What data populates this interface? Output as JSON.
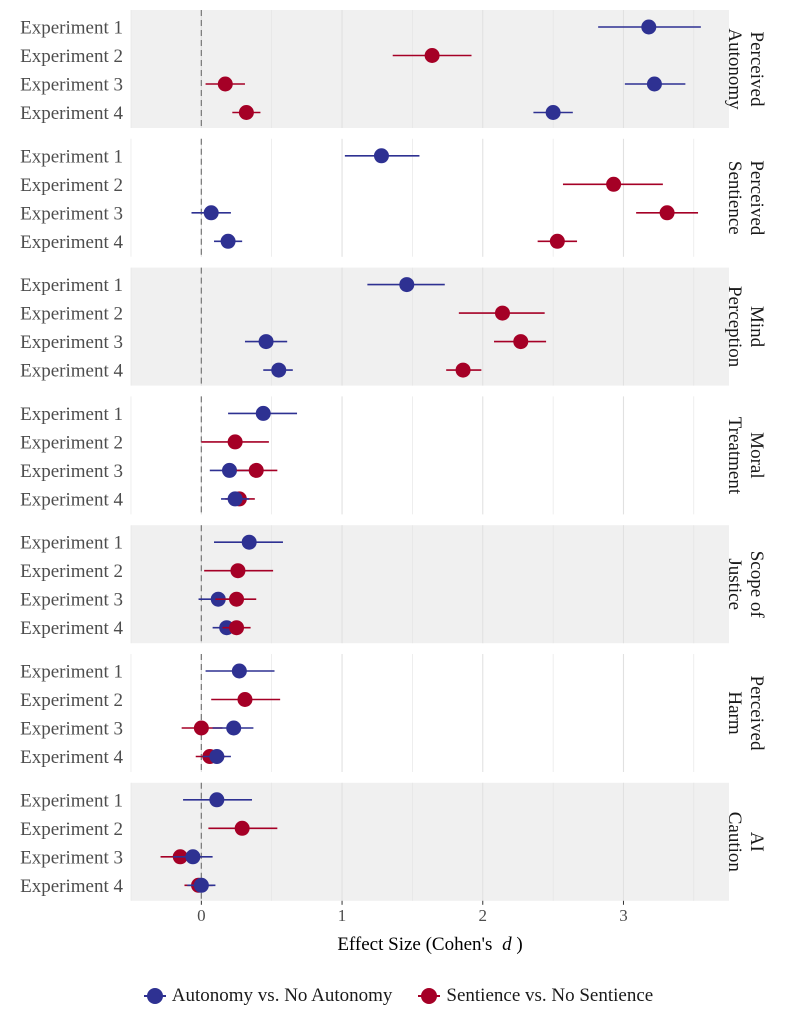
{
  "chart_data": {
    "type": "forest-plot",
    "xlabel_prefix": "Effect Size (Cohen's",
    "xlabel_italic": "d",
    "xlabel_suffix": ")",
    "xlim": [
      -0.5,
      3.75
    ],
    "xticks": [
      0,
      1,
      2,
      3
    ],
    "reference_line": 0,
    "grid": true,
    "legend_position": "bottom",
    "series": [
      {
        "name": "Autonomy vs. No Autonomy",
        "color": "#2e3192"
      },
      {
        "name": "Sentience vs. No Sentience",
        "color": "#a50026"
      }
    ],
    "categories": [
      "Experiment 1",
      "Experiment 2",
      "Experiment 3",
      "Experiment 4"
    ],
    "panels": [
      {
        "label": [
          "Perceived",
          "Autonomy"
        ],
        "shaded": true,
        "rows": [
          {
            "category": "Experiment 1",
            "series": "Autonomy vs. No Autonomy",
            "estimate": 3.18,
            "lower": 2.82,
            "upper": 3.55
          },
          {
            "category": "Experiment 2",
            "series": "Sentience vs. No Sentience",
            "estimate": 1.64,
            "lower": 1.36,
            "upper": 1.92
          },
          {
            "category": "Experiment 3",
            "series": "Sentience vs. No Sentience",
            "estimate": 0.17,
            "lower": 0.03,
            "upper": 0.31
          },
          {
            "category": "Experiment 3",
            "series": "Autonomy vs. No Autonomy",
            "estimate": 3.22,
            "lower": 3.01,
            "upper": 3.44
          },
          {
            "category": "Experiment 4",
            "series": "Sentience vs. No Sentience",
            "estimate": 0.32,
            "lower": 0.22,
            "upper": 0.42
          },
          {
            "category": "Experiment 4",
            "series": "Autonomy vs. No Autonomy",
            "estimate": 2.5,
            "lower": 2.36,
            "upper": 2.64
          }
        ]
      },
      {
        "label": [
          "Perceived",
          "Sentience"
        ],
        "shaded": false,
        "rows": [
          {
            "category": "Experiment 1",
            "series": "Autonomy vs. No Autonomy",
            "estimate": 1.28,
            "lower": 1.02,
            "upper": 1.55
          },
          {
            "category": "Experiment 2",
            "series": "Sentience vs. No Sentience",
            "estimate": 2.93,
            "lower": 2.57,
            "upper": 3.28
          },
          {
            "category": "Experiment 3",
            "series": "Autonomy vs. No Autonomy",
            "estimate": 0.07,
            "lower": -0.07,
            "upper": 0.21
          },
          {
            "category": "Experiment 3",
            "series": "Sentience vs. No Sentience",
            "estimate": 3.31,
            "lower": 3.09,
            "upper": 3.53
          },
          {
            "category": "Experiment 4",
            "series": "Autonomy vs. No Autonomy",
            "estimate": 0.19,
            "lower": 0.09,
            "upper": 0.29
          },
          {
            "category": "Experiment 4",
            "series": "Sentience vs. No Sentience",
            "estimate": 2.53,
            "lower": 2.39,
            "upper": 2.67
          }
        ]
      },
      {
        "label": [
          "Mind",
          "Perception"
        ],
        "shaded": true,
        "rows": [
          {
            "category": "Experiment 1",
            "series": "Autonomy vs. No Autonomy",
            "estimate": 1.46,
            "lower": 1.18,
            "upper": 1.73
          },
          {
            "category": "Experiment 2",
            "series": "Sentience vs. No Sentience",
            "estimate": 2.14,
            "lower": 1.83,
            "upper": 2.44
          },
          {
            "category": "Experiment 3",
            "series": "Autonomy vs. No Autonomy",
            "estimate": 0.46,
            "lower": 0.31,
            "upper": 0.61
          },
          {
            "category": "Experiment 3",
            "series": "Sentience vs. No Sentience",
            "estimate": 2.27,
            "lower": 2.08,
            "upper": 2.45
          },
          {
            "category": "Experiment 4",
            "series": "Sentience vs. No Sentience",
            "estimate": 1.86,
            "lower": 1.74,
            "upper": 1.99
          },
          {
            "category": "Experiment 4",
            "series": "Autonomy vs. No Autonomy",
            "estimate": 0.55,
            "lower": 0.44,
            "upper": 0.65
          }
        ]
      },
      {
        "label": [
          "Moral",
          "Treatment"
        ],
        "shaded": false,
        "rows": [
          {
            "category": "Experiment 1",
            "series": "Autonomy vs. No Autonomy",
            "estimate": 0.44,
            "lower": 0.19,
            "upper": 0.68
          },
          {
            "category": "Experiment 2",
            "series": "Sentience vs. No Sentience",
            "estimate": 0.24,
            "lower": 0.0,
            "upper": 0.48
          },
          {
            "category": "Experiment 3",
            "series": "Autonomy vs. No Autonomy",
            "estimate": 0.2,
            "lower": 0.06,
            "upper": 0.35
          },
          {
            "category": "Experiment 3",
            "series": "Sentience vs. No Sentience",
            "estimate": 0.39,
            "lower": 0.25,
            "upper": 0.54
          },
          {
            "category": "Experiment 4",
            "series": "Sentience vs. No Sentience",
            "estimate": 0.27,
            "lower": 0.17,
            "upper": 0.38
          },
          {
            "category": "Experiment 4",
            "series": "Autonomy vs. No Autonomy",
            "estimate": 0.24,
            "lower": 0.14,
            "upper": 0.34
          }
        ]
      },
      {
        "label": [
          "Scope of",
          "Justice"
        ],
        "shaded": true,
        "rows": [
          {
            "category": "Experiment 1",
            "series": "Autonomy vs. No Autonomy",
            "estimate": 0.34,
            "lower": 0.09,
            "upper": 0.58
          },
          {
            "category": "Experiment 2",
            "series": "Sentience vs. No Sentience",
            "estimate": 0.26,
            "lower": 0.02,
            "upper": 0.51
          },
          {
            "category": "Experiment 3",
            "series": "Autonomy vs. No Autonomy",
            "estimate": 0.12,
            "lower": -0.02,
            "upper": 0.26
          },
          {
            "category": "Experiment 3",
            "series": "Sentience vs. No Sentience",
            "estimate": 0.25,
            "lower": 0.1,
            "upper": 0.39
          },
          {
            "category": "Experiment 4",
            "series": "Autonomy vs. No Autonomy",
            "estimate": 0.18,
            "lower": 0.08,
            "upper": 0.28
          },
          {
            "category": "Experiment 4",
            "series": "Sentience vs. No Sentience",
            "estimate": 0.25,
            "lower": 0.15,
            "upper": 0.35
          }
        ]
      },
      {
        "label": [
          "Perceived",
          "Harm"
        ],
        "shaded": false,
        "rows": [
          {
            "category": "Experiment 1",
            "series": "Autonomy vs. No Autonomy",
            "estimate": 0.27,
            "lower": 0.03,
            "upper": 0.52
          },
          {
            "category": "Experiment 2",
            "series": "Sentience vs. No Sentience",
            "estimate": 0.31,
            "lower": 0.07,
            "upper": 0.56
          },
          {
            "category": "Experiment 3",
            "series": "Sentience vs. No Sentience",
            "estimate": 0.0,
            "lower": -0.14,
            "upper": 0.15
          },
          {
            "category": "Experiment 3",
            "series": "Autonomy vs. No Autonomy",
            "estimate": 0.23,
            "lower": 0.08,
            "upper": 0.37
          },
          {
            "category": "Experiment 4",
            "series": "Sentience vs. No Sentience",
            "estimate": 0.06,
            "lower": -0.04,
            "upper": 0.17
          },
          {
            "category": "Experiment 4",
            "series": "Autonomy vs. No Autonomy",
            "estimate": 0.11,
            "lower": 0.01,
            "upper": 0.21
          }
        ]
      },
      {
        "label": [
          "AI",
          "Caution"
        ],
        "shaded": true,
        "rows": [
          {
            "category": "Experiment 1",
            "series": "Autonomy vs. No Autonomy",
            "estimate": 0.11,
            "lower": -0.13,
            "upper": 0.36
          },
          {
            "category": "Experiment 2",
            "series": "Sentience vs. No Sentience",
            "estimate": 0.29,
            "lower": 0.05,
            "upper": 0.54
          },
          {
            "category": "Experiment 3",
            "series": "Sentience vs. No Sentience",
            "estimate": -0.15,
            "lower": -0.29,
            "upper": 0.0
          },
          {
            "category": "Experiment 3",
            "series": "Autonomy vs. No Autonomy",
            "estimate": -0.06,
            "lower": -0.2,
            "upper": 0.08
          },
          {
            "category": "Experiment 4",
            "series": "Sentience vs. No Sentience",
            "estimate": -0.02,
            "lower": -0.12,
            "upper": 0.08
          },
          {
            "category": "Experiment 4",
            "series": "Autonomy vs. No Autonomy",
            "estimate": 0.0,
            "lower": -0.1,
            "upper": 0.1
          }
        ]
      }
    ]
  }
}
